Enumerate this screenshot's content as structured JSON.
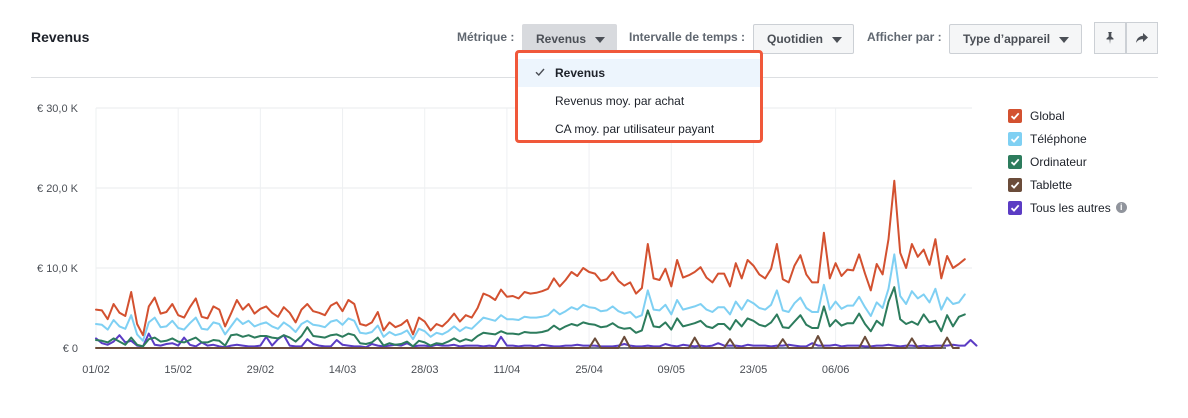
{
  "header": {
    "title": "Revenus",
    "metric_label": "Métrique :",
    "metric_value": "Revenus",
    "interval_label": "Intervalle de temps :",
    "interval_value": "Quotidien",
    "display_label": "Afficher par :",
    "display_value": "Type d’appareil",
    "pin_icon": "pin-icon",
    "share_icon": "share-icon"
  },
  "metric_dropdown": {
    "options": [
      "Revenus",
      "Revenus moy. par achat",
      "CA moy. par utilisateur payant"
    ],
    "selected": "Revenus",
    "highlight_color": "#f0583a"
  },
  "chart_data": {
    "type": "line",
    "x_start": "01/02",
    "x_tick_labels": [
      "01/02",
      "15/02",
      "29/02",
      "14/03",
      "28/03",
      "11/04",
      "25/04",
      "09/05",
      "23/05",
      "06/06"
    ],
    "y_tick_labels": [
      "€ 0",
      "€ 10,0 K",
      "€ 20,0 K",
      "€ 30,0 K"
    ],
    "ylim": [
      0,
      30000
    ],
    "grid": true,
    "legend_position": "right",
    "series": [
      {
        "name": "Global",
        "color": "#d35130",
        "values": [
          4800,
          4700,
          3600,
          5500,
          4400,
          4000,
          7000,
          3000,
          1600,
          5200,
          6300,
          4300,
          4500,
          5500,
          4100,
          3800,
          5100,
          6200,
          3900,
          3700,
          5200,
          4800,
          2700,
          4300,
          6000,
          4800,
          5500,
          4300,
          4900,
          5200,
          4400,
          3900,
          5100,
          4400,
          3200,
          4800,
          5500,
          4600,
          4400,
          4100,
          5300,
          5700,
          4600,
          6000,
          5500,
          3000,
          2800,
          3200,
          4500,
          2200,
          3200,
          2600,
          2900,
          3500,
          1700,
          3800,
          3300,
          2200,
          3000,
          2700,
          3400,
          4300,
          3300,
          4100,
          3800,
          5000,
          6800,
          6500,
          6000,
          7300,
          6400,
          6500,
          6200,
          7000,
          6800,
          6900,
          7100,
          7400,
          8700,
          7700,
          8500,
          9500,
          9000,
          10000,
          9500,
          9300,
          8400,
          8600,
          9500,
          8400,
          7800,
          8200,
          6800,
          7500,
          13000,
          8700,
          8500,
          9900,
          7700,
          11000,
          8800,
          9100,
          9500,
          10100,
          8800,
          8200,
          9300,
          9300,
          7700,
          10600,
          8700,
          11000,
          10300,
          9200,
          8700,
          9900,
          13000,
          8600,
          8200,
          10300,
          11600,
          9200,
          8200,
          8200,
          14400,
          8700,
          10600,
          9000,
          9800,
          9700,
          11700,
          9300,
          7200,
          10500,
          9200,
          13600,
          20900,
          11900,
          10000,
          13000,
          11400,
          12300,
          10400,
          13600,
          8700,
          11500,
          10000,
          10500,
          11100
        ]
      },
      {
        "name": "Téléphone",
        "color": "#7fd0f3",
        "values": [
          3000,
          2900,
          2300,
          3500,
          2700,
          2400,
          4100,
          1700,
          900,
          3200,
          3800,
          2600,
          2700,
          3400,
          2500,
          2300,
          3100,
          3800,
          2400,
          2300,
          3200,
          3000,
          1700,
          2700,
          3700,
          3000,
          3400,
          2700,
          3000,
          3200,
          2700,
          2400,
          3200,
          2700,
          2000,
          3000,
          3400,
          2900,
          2800,
          2600,
          3300,
          3500,
          2900,
          3700,
          3400,
          1900,
          1800,
          2000,
          2800,
          1400,
          2000,
          1600,
          1800,
          2200,
          1100,
          2400,
          2100,
          1400,
          1900,
          1700,
          2100,
          2700,
          2100,
          2600,
          2400,
          3100,
          3800,
          3600,
          3400,
          4100,
          3600,
          3600,
          3500,
          3900,
          3800,
          3800,
          3900,
          4100,
          4800,
          4200,
          4600,
          5100,
          4800,
          5400,
          5100,
          5000,
          4600,
          4700,
          5200,
          4600,
          4300,
          4500,
          3800,
          4100,
          7200,
          4800,
          4700,
          5400,
          4200,
          6000,
          4800,
          5000,
          5200,
          5500,
          4800,
          4500,
          5100,
          5100,
          4200,
          5800,
          4800,
          6000,
          5600,
          5000,
          4800,
          5400,
          7200,
          4700,
          4500,
          5600,
          6300,
          5000,
          4500,
          4500,
          7900,
          4800,
          5800,
          4900,
          5300,
          5300,
          6400,
          5100,
          4000,
          5700,
          5000,
          7400,
          11700,
          6500,
          5500,
          7100,
          6200,
          6700,
          5700,
          7400,
          4800,
          6300,
          5500,
          5700,
          6700
        ]
      },
      {
        "name": "Ordinateur",
        "color": "#2d7c5d",
        "values": [
          1000,
          900,
          700,
          1200,
          800,
          400,
          1300,
          400,
          200,
          1100,
          1300,
          800,
          900,
          1200,
          800,
          700,
          1000,
          1300,
          700,
          700,
          1000,
          900,
          300,
          1600,
          1700,
          1400,
          1600,
          1300,
          1500,
          1500,
          1300,
          1200,
          1600,
          1300,
          800,
          1500,
          2600,
          1500,
          1400,
          1300,
          1600,
          1700,
          1400,
          1800,
          1600,
          600,
          500,
          700,
          1300,
          300,
          600,
          400,
          500,
          800,
          200,
          900,
          700,
          300,
          600,
          500,
          800,
          1200,
          800,
          1100,
          900,
          1500,
          1900,
          1800,
          1700,
          2100,
          1800,
          1800,
          1700,
          2000,
          1900,
          1900,
          2000,
          2200,
          2800,
          2300,
          2700,
          3000,
          2800,
          3200,
          3000,
          2900,
          2600,
          2700,
          3100,
          2600,
          2400,
          2500,
          1900,
          2200,
          4700,
          2700,
          2600,
          3200,
          2300,
          3700,
          2700,
          2900,
          3100,
          3400,
          2700,
          2500,
          3000,
          3000,
          2300,
          3500,
          2700,
          3700,
          3400,
          2900,
          2700,
          3200,
          4200,
          2600,
          2500,
          3300,
          4100,
          2900,
          2500,
          2500,
          5200,
          2700,
          3500,
          2800,
          3100,
          3100,
          4300,
          3000,
          2100,
          3400,
          2800,
          5800,
          7600,
          3600,
          3000,
          3300,
          2900,
          4200,
          3200,
          3400,
          2100,
          4100,
          2700,
          3900,
          4200
        ]
      },
      {
        "name": "Tablette",
        "color": "#6b4c3a",
        "values": [
          0,
          0,
          0,
          0,
          0,
          0,
          0,
          0,
          0,
          0,
          0,
          0,
          0,
          0,
          0,
          0,
          0,
          0,
          0,
          0,
          0,
          0,
          0,
          0,
          0,
          0,
          0,
          0,
          0,
          0,
          0,
          0,
          0,
          0,
          0,
          0,
          0,
          0,
          0,
          0,
          0,
          0,
          0,
          0,
          0,
          0,
          0,
          0,
          0,
          0,
          0,
          0,
          0,
          0,
          0,
          0,
          0,
          0,
          0,
          0,
          0,
          0,
          0,
          0,
          0,
          0,
          0,
          0,
          0,
          0,
          0,
          0,
          0,
          0,
          0,
          0,
          0,
          0,
          0,
          0,
          0,
          0,
          0,
          0,
          0,
          1200,
          0,
          0,
          0,
          0,
          1400,
          0,
          0,
          0,
          0,
          0,
          0,
          0,
          0,
          0,
          0,
          0,
          1300,
          0,
          0,
          0,
          0,
          0,
          1100,
          0,
          0,
          0,
          0,
          0,
          0,
          0,
          0,
          1100,
          0,
          0,
          0,
          0,
          0,
          1500,
          0,
          0,
          0,
          0,
          0,
          0,
          0,
          1400,
          0,
          0,
          0,
          0,
          0,
          0,
          0,
          1200,
          0,
          0,
          0,
          0,
          0,
          1300,
          0,
          0
        ]
      },
      {
        "name": "Tous les autres",
        "color": "#5b3cc4",
        "values": [
          1200,
          600,
          400,
          800,
          1600,
          700,
          900,
          300,
          200,
          1800,
          400,
          300,
          500,
          600,
          300,
          1300,
          400,
          200,
          700,
          300,
          400,
          200,
          100,
          300,
          400,
          300,
          200,
          200,
          300,
          1400,
          300,
          1100,
          1600,
          300,
          200,
          200,
          1100,
          500,
          300,
          200,
          200,
          1000,
          400,
          300,
          200,
          200,
          100,
          500,
          300,
          200,
          300,
          400,
          300,
          600,
          200,
          300,
          300,
          200,
          400,
          300,
          300,
          400,
          200,
          300,
          300,
          300,
          200,
          300,
          200,
          1400,
          300,
          300,
          200,
          300,
          300,
          200,
          400,
          300,
          200,
          200,
          300,
          300,
          400,
          300,
          300,
          300,
          200,
          200,
          200,
          300,
          500,
          300,
          200,
          200,
          300,
          200,
          200,
          500,
          300,
          200,
          400,
          300,
          200,
          300,
          200,
          300,
          600,
          300,
          300,
          300,
          200,
          400,
          300,
          300,
          300,
          200,
          300,
          300,
          400,
          300,
          200,
          200,
          600,
          300,
          300,
          300,
          400,
          200,
          300,
          300,
          300,
          200,
          200,
          300,
          300,
          400,
          300,
          200,
          300,
          300,
          200,
          300,
          200,
          300,
          300,
          300,
          400,
          300,
          300,
          1000,
          300
        ]
      }
    ]
  }
}
